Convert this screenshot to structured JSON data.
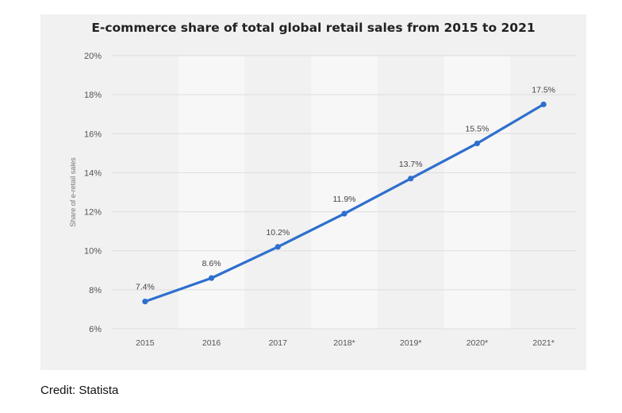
{
  "chart_data": {
    "type": "line",
    "title": "E-commerce share of total global retail sales from 2015 to 2021",
    "xlabel": "",
    "ylabel": "Share of e-retail sales",
    "categories": [
      "2015",
      "2016",
      "2017",
      "2018*",
      "2019*",
      "2020*",
      "2021*"
    ],
    "series": [
      {
        "values": [
          7.4,
          8.6,
          10.2,
          11.9,
          13.7,
          15.5,
          17.5
        ]
      }
    ],
    "data_labels": [
      "7.4%",
      "8.6%",
      "10.2%",
      "11.9%",
      "13.7%",
      "15.5%",
      "17.5%"
    ],
    "ylim": [
      6,
      20
    ],
    "yticks": [
      6,
      8,
      10,
      12,
      14,
      16,
      18,
      20
    ],
    "ytick_labels": [
      "6%",
      "8%",
      "10%",
      "12%",
      "14%",
      "16%",
      "18%",
      "20%"
    ],
    "grid": true,
    "line_color": "#2e6fce",
    "panel_color": "#f1f1f1",
    "band_color": "#f7f7f7"
  },
  "credit": "Credit: Statista"
}
